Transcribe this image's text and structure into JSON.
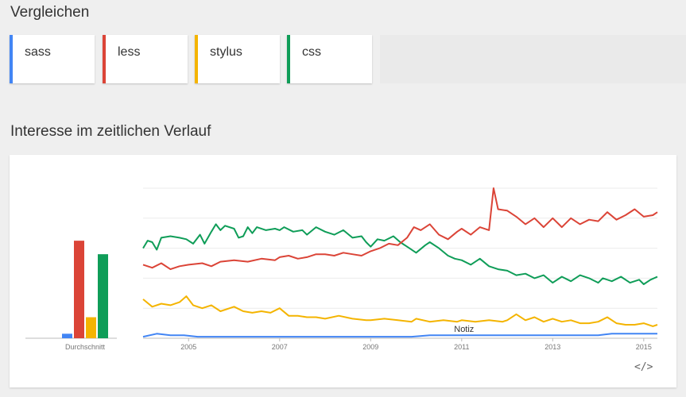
{
  "header": {
    "compare_title": "Vergleichen"
  },
  "terms": [
    {
      "label": "sass",
      "color": "#4285f4"
    },
    {
      "label": "less",
      "color": "#db4437"
    },
    {
      "label": "stylus",
      "color": "#f4b400"
    },
    {
      "label": "css",
      "color": "#0f9d58"
    }
  ],
  "section": {
    "interest_title": "Interesse im zeitlichen Verlauf"
  },
  "chart_data": {
    "type": "line",
    "ylim": [
      0,
      100
    ],
    "grid": true,
    "average": {
      "label": "Durchschnitt",
      "values": [
        3,
        65,
        14,
        56
      ]
    },
    "x_ticks": [
      "2005",
      "2007",
      "2009",
      "2011",
      "2013",
      "2015"
    ],
    "x_tick_values": [
      2005,
      2007,
      2009,
      2011,
      2013,
      2015
    ],
    "x_range": [
      2004,
      2015.3
    ],
    "annotation": {
      "label": "Notiz",
      "x": 2011.0
    },
    "series": [
      {
        "name": "sass",
        "color": "#4285f4",
        "points": [
          [
            2004,
            1
          ],
          [
            2004.3,
            3
          ],
          [
            2004.6,
            2
          ],
          [
            2004.9,
            2
          ],
          [
            2005.2,
            1
          ],
          [
            2006,
            1
          ],
          [
            2007,
            1
          ],
          [
            2008,
            1
          ],
          [
            2009,
            1
          ],
          [
            2009.9,
            1
          ],
          [
            2010.3,
            2
          ],
          [
            2011,
            2
          ],
          [
            2011.8,
            2
          ],
          [
            2012.3,
            2
          ],
          [
            2013,
            2
          ],
          [
            2014,
            2
          ],
          [
            2014.3,
            3
          ],
          [
            2015,
            3
          ],
          [
            2015.3,
            3
          ]
        ]
      },
      {
        "name": "less",
        "color": "#db4437",
        "points": [
          [
            2004,
            49
          ],
          [
            2004.2,
            47
          ],
          [
            2004.4,
            50
          ],
          [
            2004.6,
            46
          ],
          [
            2004.8,
            48
          ],
          [
            2005,
            49
          ],
          [
            2005.3,
            50
          ],
          [
            2005.5,
            48
          ],
          [
            2005.7,
            51
          ],
          [
            2006,
            52
          ],
          [
            2006.3,
            51
          ],
          [
            2006.6,
            53
          ],
          [
            2006.9,
            52
          ],
          [
            2007,
            54
          ],
          [
            2007.2,
            55
          ],
          [
            2007.4,
            53
          ],
          [
            2007.6,
            54
          ],
          [
            2007.8,
            56
          ],
          [
            2008,
            56
          ],
          [
            2008.2,
            55
          ],
          [
            2008.4,
            57
          ],
          [
            2008.6,
            56
          ],
          [
            2008.8,
            55
          ],
          [
            2009,
            58
          ],
          [
            2009.2,
            60
          ],
          [
            2009.4,
            63
          ],
          [
            2009.6,
            62
          ],
          [
            2009.8,
            67
          ],
          [
            2009.95,
            74
          ],
          [
            2010.1,
            72
          ],
          [
            2010.3,
            76
          ],
          [
            2010.5,
            69
          ],
          [
            2010.7,
            66
          ],
          [
            2010.9,
            71
          ],
          [
            2011,
            73
          ],
          [
            2011.2,
            69
          ],
          [
            2011.4,
            74
          ],
          [
            2011.6,
            72
          ],
          [
            2011.7,
            100
          ],
          [
            2011.8,
            86
          ],
          [
            2012,
            85
          ],
          [
            2012.2,
            81
          ],
          [
            2012.4,
            76
          ],
          [
            2012.6,
            80
          ],
          [
            2012.8,
            74
          ],
          [
            2013,
            80
          ],
          [
            2013.2,
            74
          ],
          [
            2013.4,
            80
          ],
          [
            2013.6,
            76
          ],
          [
            2013.8,
            79
          ],
          [
            2014,
            78
          ],
          [
            2014.2,
            84
          ],
          [
            2014.4,
            79
          ],
          [
            2014.6,
            82
          ],
          [
            2014.8,
            86
          ],
          [
            2015,
            81
          ],
          [
            2015.2,
            82
          ],
          [
            2015.3,
            84
          ]
        ]
      },
      {
        "name": "stylus",
        "color": "#f4b400",
        "points": [
          [
            2004,
            26
          ],
          [
            2004.2,
            21
          ],
          [
            2004.4,
            23
          ],
          [
            2004.6,
            22
          ],
          [
            2004.8,
            24
          ],
          [
            2004.95,
            28
          ],
          [
            2005.1,
            22
          ],
          [
            2005.3,
            20
          ],
          [
            2005.5,
            22
          ],
          [
            2005.7,
            18
          ],
          [
            2006,
            21
          ],
          [
            2006.2,
            18
          ],
          [
            2006.4,
            17
          ],
          [
            2006.6,
            18
          ],
          [
            2006.8,
            17
          ],
          [
            2007,
            20
          ],
          [
            2007.2,
            15
          ],
          [
            2007.4,
            15
          ],
          [
            2007.6,
            14
          ],
          [
            2007.8,
            14
          ],
          [
            2008,
            13
          ],
          [
            2008.3,
            15
          ],
          [
            2008.6,
            13
          ],
          [
            2008.9,
            12
          ],
          [
            2009,
            12
          ],
          [
            2009.3,
            13
          ],
          [
            2009.6,
            12
          ],
          [
            2009.9,
            11
          ],
          [
            2010,
            13
          ],
          [
            2010.3,
            11
          ],
          [
            2010.6,
            12
          ],
          [
            2010.9,
            11
          ],
          [
            2011,
            12
          ],
          [
            2011.3,
            11
          ],
          [
            2011.6,
            12
          ],
          [
            2011.9,
            11
          ],
          [
            2012,
            12
          ],
          [
            2012.2,
            16
          ],
          [
            2012.4,
            12
          ],
          [
            2012.6,
            14
          ],
          [
            2012.8,
            11
          ],
          [
            2013,
            13
          ],
          [
            2013.2,
            11
          ],
          [
            2013.4,
            12
          ],
          [
            2013.6,
            10
          ],
          [
            2013.8,
            10
          ],
          [
            2014,
            11
          ],
          [
            2014.2,
            14
          ],
          [
            2014.4,
            10
          ],
          [
            2014.6,
            9
          ],
          [
            2014.8,
            9
          ],
          [
            2015,
            10
          ],
          [
            2015.2,
            8
          ],
          [
            2015.3,
            9
          ]
        ]
      },
      {
        "name": "css",
        "color": "#0f9d58",
        "points": [
          [
            2004,
            60
          ],
          [
            2004.1,
            65
          ],
          [
            2004.2,
            64
          ],
          [
            2004.3,
            59
          ],
          [
            2004.4,
            67
          ],
          [
            2004.6,
            68
          ],
          [
            2004.8,
            67
          ],
          [
            2004.95,
            66
          ],
          [
            2005.1,
            63
          ],
          [
            2005.25,
            69
          ],
          [
            2005.35,
            63
          ],
          [
            2005.5,
            71
          ],
          [
            2005.6,
            76
          ],
          [
            2005.7,
            72
          ],
          [
            2005.8,
            75
          ],
          [
            2006,
            73
          ],
          [
            2006.1,
            67
          ],
          [
            2006.2,
            68
          ],
          [
            2006.3,
            74
          ],
          [
            2006.4,
            70
          ],
          [
            2006.5,
            74
          ],
          [
            2006.7,
            72
          ],
          [
            2006.9,
            73
          ],
          [
            2007,
            72
          ],
          [
            2007.1,
            74
          ],
          [
            2007.3,
            71
          ],
          [
            2007.5,
            72
          ],
          [
            2007.6,
            69
          ],
          [
            2007.8,
            74
          ],
          [
            2008,
            71
          ],
          [
            2008.2,
            69
          ],
          [
            2008.4,
            72
          ],
          [
            2008.6,
            67
          ],
          [
            2008.8,
            68
          ],
          [
            2008.9,
            64
          ],
          [
            2009,
            61
          ],
          [
            2009.15,
            66
          ],
          [
            2009.3,
            65
          ],
          [
            2009.5,
            68
          ],
          [
            2009.65,
            64
          ],
          [
            2009.85,
            60
          ],
          [
            2010,
            57
          ],
          [
            2010.2,
            62
          ],
          [
            2010.3,
            64
          ],
          [
            2010.5,
            60
          ],
          [
            2010.7,
            55
          ],
          [
            2010.85,
            53
          ],
          [
            2011,
            52
          ],
          [
            2011.2,
            49
          ],
          [
            2011.4,
            53
          ],
          [
            2011.6,
            48
          ],
          [
            2011.8,
            46
          ],
          [
            2012,
            45
          ],
          [
            2012.2,
            42
          ],
          [
            2012.4,
            43
          ],
          [
            2012.6,
            40
          ],
          [
            2012.8,
            42
          ],
          [
            2013,
            37
          ],
          [
            2013.2,
            41
          ],
          [
            2013.4,
            38
          ],
          [
            2013.6,
            42
          ],
          [
            2013.8,
            40
          ],
          [
            2014,
            37
          ],
          [
            2014.1,
            40
          ],
          [
            2014.3,
            38
          ],
          [
            2014.5,
            41
          ],
          [
            2014.7,
            37
          ],
          [
            2014.9,
            39
          ],
          [
            2015,
            36
          ],
          [
            2015.15,
            39
          ],
          [
            2015.3,
            41
          ]
        ]
      }
    ]
  }
}
